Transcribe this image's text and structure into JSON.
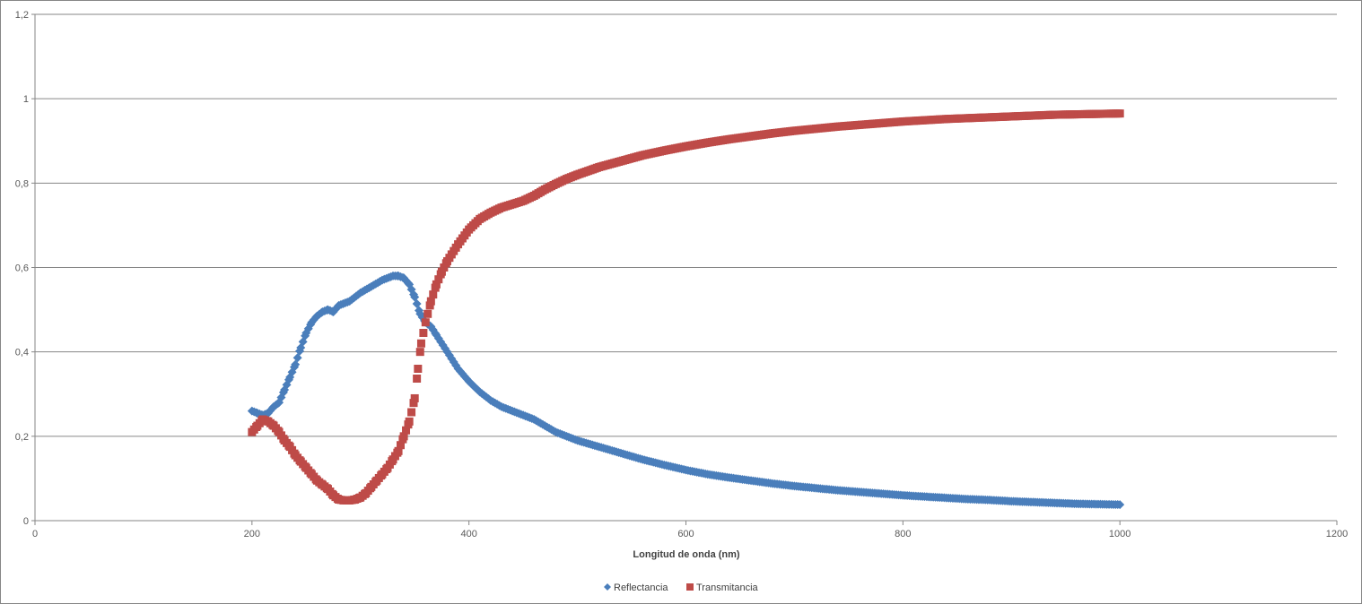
{
  "chart_data": {
    "type": "scatter",
    "title": "",
    "xlabel": "Longitud de onda (nm)",
    "ylabel": "",
    "xlim": [
      0,
      1200
    ],
    "ylim": [
      0,
      1.2
    ],
    "xticks": [
      "0",
      "200",
      "400",
      "600",
      "800",
      "1000",
      "1200"
    ],
    "yticks": [
      "0",
      "0,2",
      "0,4",
      "0,6",
      "0,8",
      "1",
      "1,2"
    ],
    "grid": "horizontal",
    "legend_position": "bottom",
    "series": [
      {
        "name": "Reflectancia",
        "color": "#4a7ebb",
        "marker": "diamond",
        "points": [
          [
            200,
            0.26
          ],
          [
            205,
            0.255
          ],
          [
            210,
            0.25
          ],
          [
            215,
            0.255
          ],
          [
            220,
            0.27
          ],
          [
            225,
            0.28
          ],
          [
            230,
            0.31
          ],
          [
            235,
            0.34
          ],
          [
            240,
            0.37
          ],
          [
            245,
            0.41
          ],
          [
            250,
            0.445
          ],
          [
            255,
            0.47
          ],
          [
            260,
            0.485
          ],
          [
            265,
            0.495
          ],
          [
            270,
            0.5
          ],
          [
            275,
            0.495
          ],
          [
            280,
            0.51
          ],
          [
            290,
            0.52
          ],
          [
            300,
            0.54
          ],
          [
            310,
            0.555
          ],
          [
            320,
            0.57
          ],
          [
            330,
            0.58
          ],
          [
            335,
            0.58
          ],
          [
            340,
            0.575
          ],
          [
            345,
            0.56
          ],
          [
            350,
            0.53
          ],
          [
            355,
            0.49
          ],
          [
            360,
            0.47
          ],
          [
            365,
            0.46
          ],
          [
            370,
            0.44
          ],
          [
            380,
            0.4
          ],
          [
            390,
            0.36
          ],
          [
            400,
            0.33
          ],
          [
            410,
            0.305
          ],
          [
            420,
            0.285
          ],
          [
            430,
            0.27
          ],
          [
            440,
            0.26
          ],
          [
            450,
            0.25
          ],
          [
            460,
            0.24
          ],
          [
            470,
            0.225
          ],
          [
            480,
            0.21
          ],
          [
            490,
            0.2
          ],
          [
            500,
            0.19
          ],
          [
            520,
            0.175
          ],
          [
            540,
            0.16
          ],
          [
            560,
            0.145
          ],
          [
            580,
            0.132
          ],
          [
            600,
            0.12
          ],
          [
            620,
            0.11
          ],
          [
            640,
            0.102
          ],
          [
            660,
            0.095
          ],
          [
            680,
            0.088
          ],
          [
            700,
            0.082
          ],
          [
            720,
            0.077
          ],
          [
            740,
            0.072
          ],
          [
            760,
            0.068
          ],
          [
            780,
            0.064
          ],
          [
            800,
            0.06
          ],
          [
            820,
            0.057
          ],
          [
            840,
            0.054
          ],
          [
            860,
            0.051
          ],
          [
            880,
            0.049
          ],
          [
            900,
            0.046
          ],
          [
            920,
            0.044
          ],
          [
            940,
            0.042
          ],
          [
            960,
            0.04
          ],
          [
            980,
            0.039
          ],
          [
            1000,
            0.038
          ]
        ]
      },
      {
        "name": "Transmitancia",
        "color": "#be4b48",
        "marker": "square",
        "points": [
          [
            200,
            0.21
          ],
          [
            205,
            0.225
          ],
          [
            210,
            0.24
          ],
          [
            215,
            0.235
          ],
          [
            220,
            0.225
          ],
          [
            225,
            0.21
          ],
          [
            230,
            0.19
          ],
          [
            235,
            0.175
          ],
          [
            240,
            0.155
          ],
          [
            245,
            0.14
          ],
          [
            250,
            0.125
          ],
          [
            255,
            0.11
          ],
          [
            260,
            0.095
          ],
          [
            265,
            0.085
          ],
          [
            270,
            0.075
          ],
          [
            275,
            0.06
          ],
          [
            280,
            0.05
          ],
          [
            285,
            0.048
          ],
          [
            290,
            0.048
          ],
          [
            295,
            0.05
          ],
          [
            300,
            0.055
          ],
          [
            305,
            0.065
          ],
          [
            310,
            0.08
          ],
          [
            315,
            0.095
          ],
          [
            320,
            0.11
          ],
          [
            325,
            0.125
          ],
          [
            330,
            0.145
          ],
          [
            335,
            0.165
          ],
          [
            340,
            0.2
          ],
          [
            345,
            0.235
          ],
          [
            350,
            0.29
          ],
          [
            353,
            0.36
          ],
          [
            356,
            0.42
          ],
          [
            360,
            0.47
          ],
          [
            365,
            0.52
          ],
          [
            370,
            0.56
          ],
          [
            375,
            0.59
          ],
          [
            380,
            0.615
          ],
          [
            390,
            0.655
          ],
          [
            400,
            0.69
          ],
          [
            410,
            0.715
          ],
          [
            420,
            0.73
          ],
          [
            430,
            0.742
          ],
          [
            440,
            0.75
          ],
          [
            450,
            0.758
          ],
          [
            460,
            0.77
          ],
          [
            470,
            0.785
          ],
          [
            480,
            0.798
          ],
          [
            490,
            0.81
          ],
          [
            500,
            0.82
          ],
          [
            520,
            0.838
          ],
          [
            540,
            0.852
          ],
          [
            560,
            0.866
          ],
          [
            580,
            0.877
          ],
          [
            600,
            0.887
          ],
          [
            620,
            0.896
          ],
          [
            640,
            0.904
          ],
          [
            660,
            0.911
          ],
          [
            680,
            0.918
          ],
          [
            700,
            0.924
          ],
          [
            720,
            0.929
          ],
          [
            740,
            0.934
          ],
          [
            760,
            0.938
          ],
          [
            780,
            0.942
          ],
          [
            800,
            0.946
          ],
          [
            820,
            0.949
          ],
          [
            840,
            0.952
          ],
          [
            860,
            0.954
          ],
          [
            880,
            0.956
          ],
          [
            900,
            0.958
          ],
          [
            920,
            0.96
          ],
          [
            940,
            0.962
          ],
          [
            960,
            0.963
          ],
          [
            980,
            0.964
          ],
          [
            1000,
            0.965
          ]
        ]
      }
    ]
  }
}
